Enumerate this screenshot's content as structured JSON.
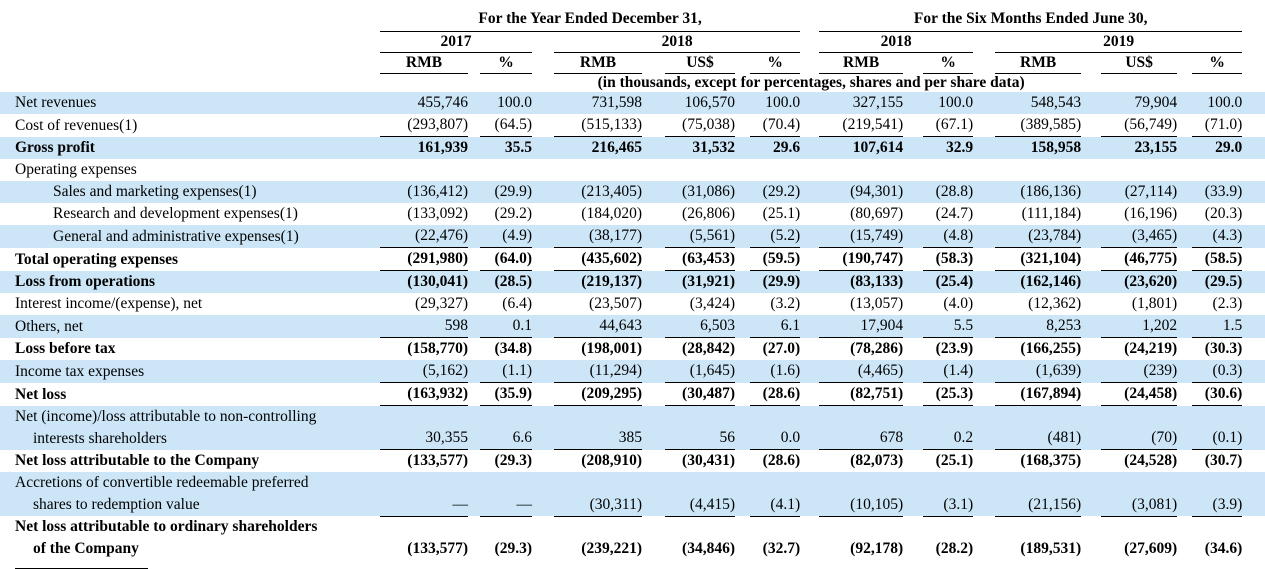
{
  "table": {
    "header": {
      "group1_title": "For the Year Ended December 31,",
      "group2_title": "For the Six Months Ended June 30,",
      "years": [
        "2017",
        "2018",
        "2018",
        "2019"
      ],
      "columns": [
        "RMB",
        "%",
        "RMB",
        "US$",
        "%",
        "RMB",
        "%",
        "RMB",
        "US$",
        "%"
      ],
      "note": "(in thousands, except for percentages, shares and per share data)"
    },
    "rows": [
      {
        "label": "Net revenues",
        "shade": true,
        "values": [
          "455,746",
          "100.0",
          "731,598",
          "106,570",
          "100.0",
          "327,155",
          "100.0",
          "548,543",
          "79,904",
          "100.0"
        ]
      },
      {
        "label": "Cost of revenues(1)",
        "underline": true,
        "values": [
          "(293,807)",
          "(64.5)",
          "(515,133)",
          "(75,038)",
          "(70.4)",
          "(219,541)",
          "(67.1)",
          "(389,585)",
          "(56,749)",
          "(71.0)"
        ]
      },
      {
        "label": "Gross profit",
        "bold": true,
        "shade": true,
        "values": [
          "161,939",
          "35.5",
          "216,465",
          "31,532",
          "29.6",
          "107,614",
          "32.9",
          "158,958",
          "23,155",
          "29.0"
        ]
      },
      {
        "label": "Operating expenses",
        "values": [
          "",
          "",
          "",
          "",
          "",
          "",
          "",
          "",
          "",
          ""
        ]
      },
      {
        "label": "Sales and marketing expenses(1)",
        "indent": true,
        "shade": true,
        "values": [
          "(136,412)",
          "(29.9)",
          "(213,405)",
          "(31,086)",
          "(29.2)",
          "(94,301)",
          "(28.8)",
          "(186,136)",
          "(27,114)",
          "(33.9)"
        ]
      },
      {
        "label": "Research and development expenses(1)",
        "indent": true,
        "values": [
          "(133,092)",
          "(29.2)",
          "(184,020)",
          "(26,806)",
          "(25.1)",
          "(80,697)",
          "(24.7)",
          "(111,184)",
          "(16,196)",
          "(20.3)"
        ]
      },
      {
        "label": "General and administrative expenses(1)",
        "indent": true,
        "shade": true,
        "underline": true,
        "values": [
          "(22,476)",
          "(4.9)",
          "(38,177)",
          "(5,561)",
          "(5.2)",
          "(15,749)",
          "(4.8)",
          "(23,784)",
          "(3,465)",
          "(4.3)"
        ]
      },
      {
        "label": "Total operating expenses",
        "bold": true,
        "underline": true,
        "values": [
          "(291,980)",
          "(64.0)",
          "(435,602)",
          "(63,453)",
          "(59.5)",
          "(190,747)",
          "(58.3)",
          "(321,104)",
          "(46,775)",
          "(58.5)"
        ]
      },
      {
        "label": "Loss from operations",
        "bold": true,
        "shade": true,
        "values": [
          "(130,041)",
          "(28.5)",
          "(219,137)",
          "(31,921)",
          "(29.9)",
          "(83,133)",
          "(25.4)",
          "(162,146)",
          "(23,620)",
          "(29.5)"
        ]
      },
      {
        "label": "Interest income/(expense), net",
        "values": [
          "(29,327)",
          "(6.4)",
          "(23,507)",
          "(3,424)",
          "(3.2)",
          "(13,057)",
          "(4.0)",
          "(12,362)",
          "(1,801)",
          "(2.3)"
        ]
      },
      {
        "label": "Others, net",
        "shade": true,
        "underline": true,
        "values": [
          "598",
          "0.1",
          "44,643",
          "6,503",
          "6.1",
          "17,904",
          "5.5",
          "8,253",
          "1,202",
          "1.5"
        ]
      },
      {
        "label": "Loss before tax",
        "bold": true,
        "values": [
          "(158,770)",
          "(34.8)",
          "(198,001)",
          "(28,842)",
          "(27.0)",
          "(78,286)",
          "(23.9)",
          "(166,255)",
          "(24,219)",
          "(30.3)"
        ]
      },
      {
        "label": "Income tax expenses",
        "shade": true,
        "underline": true,
        "values": [
          "(5,162)",
          "(1.1)",
          "(11,294)",
          "(1,645)",
          "(1.6)",
          "(4,465)",
          "(1.4)",
          "(1,639)",
          "(239)",
          "(0.3)"
        ]
      },
      {
        "label": "Net loss",
        "bold": true,
        "underline": true,
        "values": [
          "(163,932)",
          "(35.9)",
          "(209,295)",
          "(30,487)",
          "(28.6)",
          "(82,751)",
          "(25.3)",
          "(167,894)",
          "(24,458)",
          "(30.6)"
        ]
      },
      {
        "label": "Net (income)/loss attributable to non-controlling",
        "label2": "interests shareholders",
        "shade": true,
        "underline": true,
        "values": [
          "30,355",
          "6.6",
          "385",
          "56",
          "0.0",
          "678",
          "0.2",
          "(481)",
          "(70)",
          "(0.1)"
        ]
      },
      {
        "label": "Net loss attributable to the Company",
        "bold": true,
        "values": [
          "(133,577)",
          "(29.3)",
          "(208,910)",
          "(30,431)",
          "(28.6)",
          "(82,073)",
          "(25.1)",
          "(168,375)",
          "(24,528)",
          "(30.7)"
        ]
      },
      {
        "label": "Accretions of convertible redeemable preferred",
        "label2": "shares to redemption value",
        "shade": true,
        "underline": true,
        "values": [
          "—",
          "—",
          "(30,311)",
          "(4,415)",
          "(4.1)",
          "(10,105)",
          "(3.1)",
          "(21,156)",
          "(3,081)",
          "(3.9)"
        ]
      },
      {
        "label": "Net loss attributable to ordinary shareholders",
        "label2": "of the Company",
        "bold": true,
        "values": [
          "(133,577)",
          "(29.3)",
          "(239,221)",
          "(34,846)",
          "(32.7)",
          "(92,178)",
          "(28.2)",
          "(189,531)",
          "(27,609)",
          "(34.6)"
        ]
      }
    ]
  }
}
